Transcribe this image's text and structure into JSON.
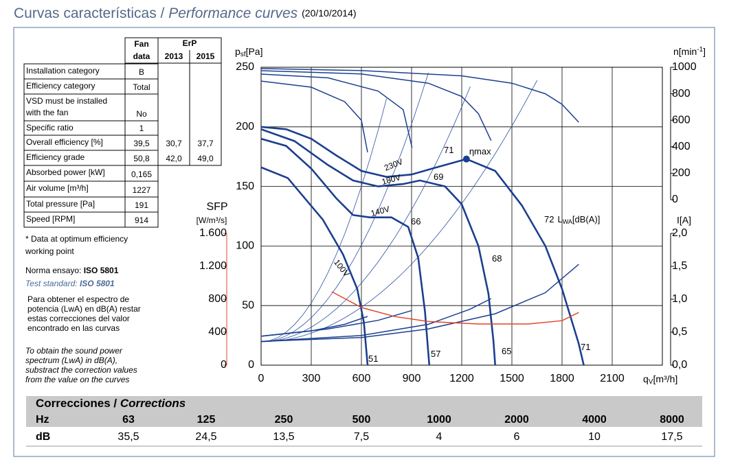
{
  "title": {
    "main": "Curvas características / ",
    "italic": "Performance curves",
    "date": "(20/10/2014)"
  },
  "fan_table": {
    "header": {
      "fan": "Fan",
      "data": "data",
      "erp": "ErP",
      "year_a": "2013",
      "year_b": "2015"
    },
    "rows": [
      {
        "label": [
          "Installation category"
        ],
        "fan": "B"
      },
      {
        "label": [
          "Efficiency category"
        ],
        "fan": "Total"
      },
      {
        "label": [
          "VSD must be installed",
          "with the fan"
        ],
        "fan": "No"
      },
      {
        "label": [
          "Specific ratio"
        ],
        "fan": "1"
      },
      {
        "label": [
          "Overall efficiency [%]"
        ],
        "fan": "39,5",
        "erp_a": "30,7",
        "erp_b": "37,7"
      },
      {
        "label": [
          "Efficiency grade"
        ],
        "fan": "50,8",
        "erp_a": "42,0",
        "erp_b": "49,0"
      },
      {
        "label": [
          "Absorbed power [kW]"
        ],
        "fan": "0,165"
      },
      {
        "label": [
          "Air volume [m³/h]"
        ],
        "fan": "1227"
      },
      {
        "label": [
          "Total pressure [Pa]"
        ],
        "fan": "191"
      },
      {
        "label": [
          "Speed [RPM]"
        ],
        "fan": "914"
      }
    ]
  },
  "notes": {
    "optimum": [
      "* Data at optimum efficiency",
      "working point"
    ],
    "norma": {
      "text": "Norma ensayo: ",
      "bold": "ISO 5801"
    },
    "standard": {
      "text": "Test standard: ",
      "bold": "ISO 5801"
    },
    "es": [
      "Para obtener el espectro de",
      "potencia (LwA) en dB(A) restar",
      "estas correcciones del valor",
      "encontrado en las curvas"
    ],
    "en": [
      "To obtain the sound power",
      "spectrum (LwA) in dB(A),",
      "substract the correction values",
      "from the value on the curves"
    ]
  },
  "chart_data": {
    "type": "line",
    "x_label": {
      "main": "q",
      "sub": "V",
      "unit": "[m³/h]"
    },
    "y_label": {
      "main": "p",
      "sub": "sf",
      "unit": "[Pa]"
    },
    "n_label": {
      "main": "n[min",
      "sup": "-1",
      "end": "]"
    },
    "i_label": "I[A]",
    "sfp_label": {
      "main": "SFP",
      "unit": "[W/m³/s]"
    },
    "xlim": [
      0,
      2400
    ],
    "xticks": [
      0,
      300,
      600,
      900,
      1200,
      1500,
      1800,
      2100
    ],
    "ylim": [
      0,
      250
    ],
    "yticks": [
      0,
      50,
      100,
      150,
      200,
      250
    ],
    "nlim": [
      0,
      1000
    ],
    "nticks": [
      0,
      200,
      400,
      600,
      800,
      1000
    ],
    "ilim": [
      0,
      2
    ],
    "iticks": [
      {
        "value": 0,
        "label": "0,0"
      },
      {
        "value": 0.5,
        "label": "0,5"
      },
      {
        "value": 1,
        "label": "1,0"
      },
      {
        "value": 1.5,
        "label": "1,5"
      },
      {
        "value": 2,
        "label": "2,0"
      }
    ],
    "sfplim": [
      0,
      1600
    ],
    "sfpticks": [
      0,
      400,
      800,
      {
        "value": 1200,
        "label": "1.200"
      },
      {
        "value": 1600,
        "label": "1.600"
      }
    ],
    "grid": true,
    "series": [
      {
        "name": "230V",
        "axis": "y",
        "color": "#1b3f8f",
        "x": [
          0,
          150,
          300,
          450,
          600,
          750,
          900,
          1050,
          1228,
          1400,
          1560,
          1700,
          1800,
          1900,
          1930
        ],
        "values": [
          200,
          198,
          190,
          176,
          163,
          158,
          160,
          166,
          173,
          163,
          134,
          100,
          64,
          18,
          0
        ]
      },
      {
        "name": "180V",
        "axis": "y",
        "color": "#1b3f8f",
        "x": [
          0,
          200,
          400,
          550,
          700,
          850,
          950,
          1100,
          1200,
          1300,
          1360,
          1390,
          1400
        ],
        "values": [
          198,
          188,
          168,
          155,
          150,
          152,
          155,
          150,
          135,
          100,
          60,
          20,
          0
        ]
      },
      {
        "name": "140V",
        "axis": "y",
        "color": "#1b3f8f",
        "x": [
          0,
          150,
          300,
          450,
          550,
          650,
          780,
          880,
          940,
          980,
          1006
        ],
        "values": [
          190,
          184,
          165,
          140,
          126,
          124,
          124,
          116,
          90,
          45,
          0
        ]
      },
      {
        "name": "100V",
        "axis": "y",
        "color": "#1b3f8f",
        "x": [
          0,
          160,
          370,
          490,
          575,
          615,
          637
        ],
        "values": [
          166,
          157,
          122,
          93,
          64,
          36,
          0
        ]
      },
      {
        "axis": "n",
        "color": "#1b3f8f",
        "x": [
          0,
          600,
          1200,
          1500,
          1700,
          1800,
          1900
        ],
        "values": [
          990,
          975,
          935,
          880,
          800,
          720,
          585
        ]
      },
      {
        "axis": "n",
        "color": "#1b3f8f",
        "x": [
          0,
          600,
          1000,
          1200,
          1300,
          1376
        ],
        "values": [
          974,
          950,
          880,
          780,
          650,
          446
        ]
      },
      {
        "axis": "n",
        "color": "#1b3f8f",
        "x": [
          0,
          400,
          700,
          850,
          903
        ],
        "values": [
          948,
          920,
          820,
          680,
          394
        ]
      },
      {
        "axis": "n",
        "color": "#1b3f8f",
        "x": [
          0,
          300,
          500,
          600,
          637
        ],
        "values": [
          896,
          850,
          740,
          600,
          358
        ]
      },
      {
        "axis": "i",
        "color": "#1b3f8f",
        "x": [
          0,
          600,
          1000,
          1400,
          1700,
          1900
        ],
        "values": [
          0.36,
          0.42,
          0.55,
          0.78,
          1.1,
          1.53
        ]
      },
      {
        "axis": "i",
        "color": "#1b3f8f",
        "x": [
          0,
          600,
          1000,
          1250,
          1376
        ],
        "values": [
          0.36,
          0.45,
          0.62,
          0.85,
          1.01
        ]
      },
      {
        "axis": "i",
        "color": "#1b3f8f",
        "x": [
          0,
          400,
          700,
          903
        ],
        "values": [
          0.44,
          0.55,
          0.68,
          0.83
        ]
      },
      {
        "axis": "i",
        "color": "#1b3f8f",
        "x": [
          0,
          300,
          500,
          637
        ],
        "values": [
          0.44,
          0.52,
          0.62,
          0.74
        ]
      },
      {
        "axis": "sfp",
        "color": "#e0452c",
        "x": [
          423,
          600,
          800,
          1000,
          1300,
          1600,
          1800,
          1900
        ],
        "values": [
          892,
          700,
          590,
          530,
          500,
          500,
          540,
          640
        ]
      }
    ],
    "eta_max": {
      "label": "ηmax",
      "x": 1228,
      "y": 173
    },
    "sound_levels": [
      "71",
      "69",
      "66",
      "68",
      "51",
      "57",
      "65",
      "71",
      "72"
    ],
    "lwa_label": {
      "main": "L",
      "sub": "WA",
      "unit": "[dB(A)]"
    }
  },
  "corrections": {
    "title": {
      "main": "Correcciones / ",
      "italic": "Corrections"
    },
    "hz_label": "Hz",
    "db_label": "dB",
    "hz": [
      "63",
      "125",
      "250",
      "500",
      "1000",
      "2000",
      "4000",
      "8000"
    ],
    "db": [
      "35,5",
      "24,5",
      "13,5",
      "7,5",
      "4",
      "6",
      "10",
      "17,5"
    ]
  }
}
